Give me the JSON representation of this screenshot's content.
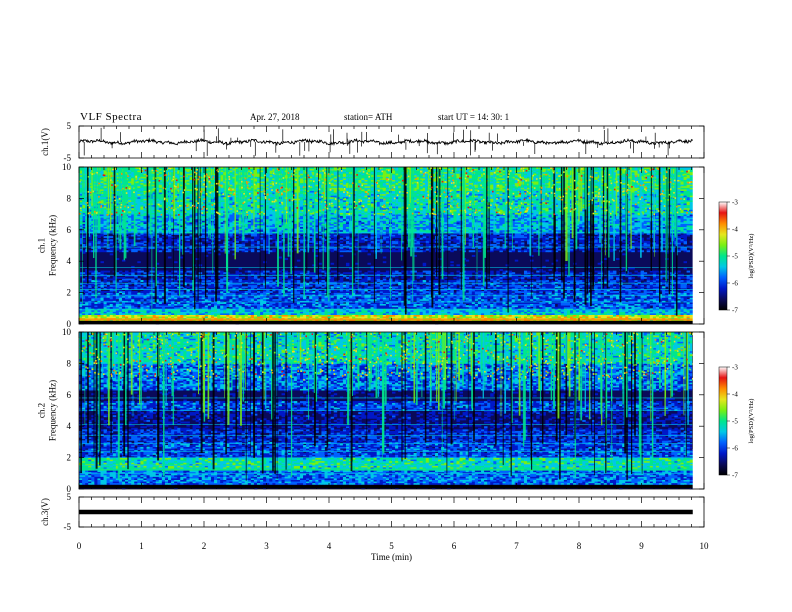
{
  "header": {
    "title": "VLF  Spectra",
    "date": "Apr. 27, 2018",
    "station": "station= ATH",
    "start_ut": "start  UT  =    14: 30: 1"
  },
  "colors": {
    "colormap": [
      "#000000",
      "#0a0a5a",
      "#0018c8",
      "#0060ff",
      "#00c8e6",
      "#00e68c",
      "#78f014",
      "#e6e61e",
      "#ff8c00",
      "#e61414",
      "#ffffff"
    ]
  },
  "chart_data": [
    {
      "type": "line",
      "name": "ch1-waveform",
      "ylabel": "ch.1(V)",
      "ylim": [
        -5,
        5
      ],
      "yticks": [
        "5",
        "-5"
      ],
      "xlim": [
        0,
        10
      ],
      "baseline": 0,
      "trace_end_min": 9.82
    },
    {
      "type": "heatmap",
      "name": "ch1-spectrogram",
      "ylabel": "ch.1\nFrequency (kHz)",
      "ylim": [
        0,
        10
      ],
      "yticks": [
        "0",
        "2",
        "4",
        "6",
        "8",
        "10"
      ],
      "xlim": [
        0,
        10
      ],
      "data_end_min": 9.82,
      "colorbar": {
        "label": "log(PSD)(V²/Hz)",
        "range": [
          -7,
          -3
        ],
        "ticks": [
          "-3",
          "-4",
          "-5",
          "-6",
          "-7"
        ]
      }
    },
    {
      "type": "heatmap",
      "name": "ch2-spectrogram",
      "ylabel": "ch.2\nFrequency (kHz)",
      "ylim": [
        0,
        10
      ],
      "yticks": [
        "0",
        "2",
        "4",
        "6",
        "8",
        "10"
      ],
      "xlim": [
        0,
        10
      ],
      "data_end_min": 9.82,
      "colorbar": {
        "label": "log(PSD)(V²/Hz)",
        "range": [
          -7,
          -3
        ],
        "ticks": [
          "-3",
          "-4",
          "-5",
          "-6",
          "-7"
        ]
      }
    },
    {
      "type": "line",
      "name": "ch3-waveform",
      "ylabel": "ch.3(V)",
      "ylim": [
        -5,
        5
      ],
      "yticks": [
        "5",
        "-5"
      ],
      "xlim": [
        0,
        10
      ],
      "baseline": 0,
      "trace_end_min": 9.82,
      "xlabel": "Time  (min)",
      "xticks": [
        "0",
        "1",
        "2",
        "3",
        "4",
        "5",
        "6",
        "7",
        "8",
        "9",
        "10"
      ]
    }
  ]
}
